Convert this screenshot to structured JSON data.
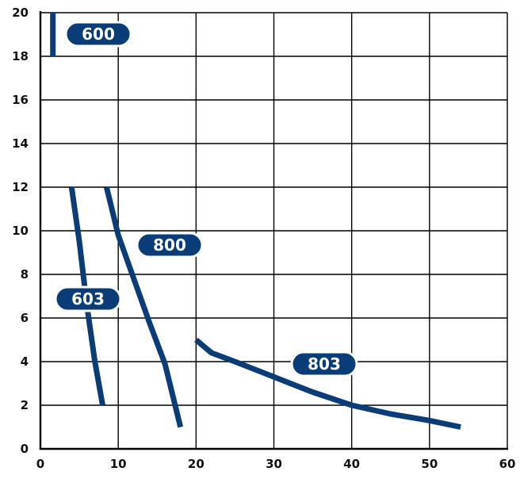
{
  "chart_data": {
    "type": "line",
    "title": "",
    "xlabel": "",
    "ylabel": "",
    "xlim": [
      0,
      60
    ],
    "ylim": [
      0,
      20
    ],
    "xticks": [
      "0",
      "10",
      "20",
      "30",
      "40",
      "50",
      "60"
    ],
    "yticks": [
      "0",
      "2",
      "4",
      "6",
      "8",
      "10",
      "12",
      "14",
      "16",
      "18",
      "20"
    ],
    "grid": true,
    "line_color": "#0a3d78",
    "series": [
      {
        "name": "600",
        "points": [
          [
            1.6,
            18.0
          ],
          [
            1.6,
            20.0
          ]
        ]
      },
      {
        "name": "603",
        "points": [
          [
            4.0,
            12.0
          ],
          [
            5.0,
            9.5
          ],
          [
            6.0,
            6.5
          ],
          [
            7.0,
            4.0
          ],
          [
            8.0,
            2.0
          ]
        ]
      },
      {
        "name": "800",
        "points": [
          [
            8.5,
            12.0
          ],
          [
            10.0,
            9.8
          ],
          [
            12.0,
            7.8
          ],
          [
            14.0,
            5.8
          ],
          [
            16.0,
            3.9
          ],
          [
            18.0,
            1.0
          ]
        ]
      },
      {
        "name": "803",
        "points": [
          [
            20.0,
            5.0
          ],
          [
            21.0,
            4.7
          ],
          [
            22.0,
            4.4
          ],
          [
            25.0,
            4.0
          ],
          [
            30.0,
            3.3
          ],
          [
            35.0,
            2.6
          ],
          [
            40.0,
            2.0
          ],
          [
            45.0,
            1.6
          ],
          [
            50.0,
            1.3
          ],
          [
            54.0,
            1.0
          ]
        ]
      }
    ]
  }
}
